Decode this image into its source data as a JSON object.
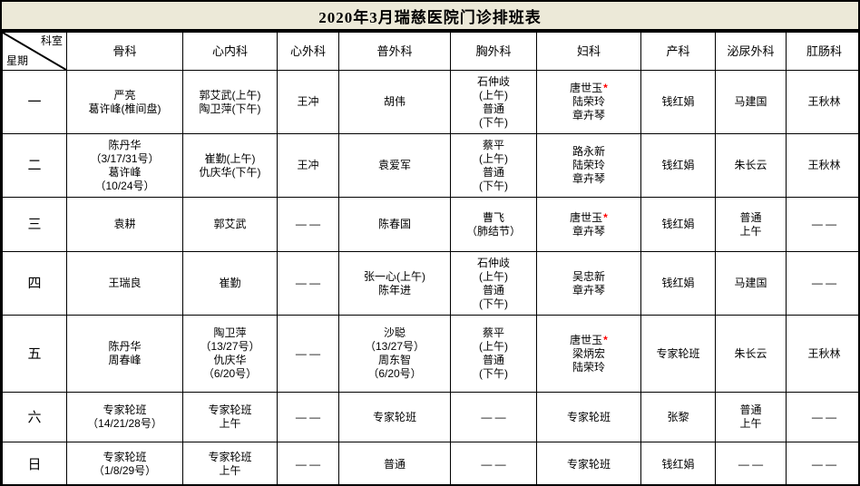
{
  "title": "2020年3月瑞慈医院门诊排班表",
  "corner": {
    "top": "科室",
    "bottom": "星期"
  },
  "star_symbol": "*",
  "colors": {
    "star": "#ff0000",
    "title_bg": "#ece9d8",
    "border": "#000000"
  },
  "columns": [
    "骨科",
    "心内科",
    "心外科",
    "普外科",
    "胸外科",
    "妇科",
    "产科",
    "泌尿外科",
    "肛肠科"
  ],
  "rows": [
    {
      "day": "一",
      "cells": [
        {
          "lines": [
            "严亮",
            "葛许峰(椎间盘)"
          ]
        },
        {
          "lines": [
            "郭艾武(上午)",
            "陶卫萍(下午)"
          ]
        },
        {
          "lines": [
            "王冲"
          ]
        },
        {
          "lines": [
            "胡伟"
          ]
        },
        {
          "lines": [
            "石仲歧",
            "(上午)",
            "普通",
            "(下午)"
          ]
        },
        {
          "lines": [
            "唐世玉",
            "陆荣玲",
            "章卉琴"
          ],
          "star": true
        },
        {
          "lines": [
            "钱红娟"
          ]
        },
        {
          "lines": [
            "马建国"
          ]
        },
        {
          "lines": [
            "王秋林"
          ]
        }
      ]
    },
    {
      "day": "二",
      "cells": [
        {
          "lines": [
            "陈丹华",
            "（3/17/31号）",
            "葛许峰",
            "（10/24号）"
          ]
        },
        {
          "lines": [
            "崔勤(上午)",
            "仇庆华(下午)"
          ]
        },
        {
          "lines": [
            "王冲"
          ]
        },
        {
          "lines": [
            "袁爱军"
          ]
        },
        {
          "lines": [
            "蔡平",
            "(上午)",
            "普通",
            "(下午)"
          ]
        },
        {
          "lines": [
            "路永新",
            "陆荣玲",
            "章卉琴"
          ]
        },
        {
          "lines": [
            "钱红娟"
          ]
        },
        {
          "lines": [
            "朱长云"
          ]
        },
        {
          "lines": [
            "王秋林"
          ]
        }
      ]
    },
    {
      "day": "三",
      "cells": [
        {
          "lines": [
            "袁耕"
          ]
        },
        {
          "lines": [
            "郭艾武"
          ]
        },
        {
          "lines": [
            "— —"
          ]
        },
        {
          "lines": [
            "陈春国"
          ]
        },
        {
          "lines": [
            "曹飞",
            "（肺结节）"
          ]
        },
        {
          "lines": [
            "唐世玉",
            "章卉琴"
          ],
          "star": true
        },
        {
          "lines": [
            "钱红娟"
          ]
        },
        {
          "lines": [
            "普通",
            "上午"
          ]
        },
        {
          "lines": [
            "— —"
          ]
        }
      ]
    },
    {
      "day": "四",
      "cells": [
        {
          "lines": [
            "王瑞良"
          ]
        },
        {
          "lines": [
            "崔勤"
          ]
        },
        {
          "lines": [
            "— —"
          ]
        },
        {
          "lines": [
            "张一心(上午)",
            "陈年进"
          ]
        },
        {
          "lines": [
            "石仲歧",
            "(上午)",
            "普通",
            "(下午)"
          ]
        },
        {
          "lines": [
            "吴忠新",
            "章卉琴"
          ]
        },
        {
          "lines": [
            "钱红娟"
          ]
        },
        {
          "lines": [
            "马建国"
          ]
        },
        {
          "lines": [
            "— —"
          ]
        }
      ]
    },
    {
      "day": "五",
      "cells": [
        {
          "lines": [
            "陈丹华",
            "周春峰"
          ]
        },
        {
          "lines": [
            "陶卫萍",
            "（13/27号）",
            "仇庆华",
            "（6/20号）"
          ]
        },
        {
          "lines": [
            "— —"
          ]
        },
        {
          "lines": [
            "沙聪",
            "（13/27号）",
            "周东智",
            "（6/20号）"
          ]
        },
        {
          "lines": [
            "蔡平",
            "(上午)",
            "普通",
            "(下午)"
          ]
        },
        {
          "lines": [
            "唐世玉",
            "梁炳宏",
            "陆荣玲"
          ],
          "star": true
        },
        {
          "lines": [
            "专家轮班"
          ]
        },
        {
          "lines": [
            "朱长云"
          ]
        },
        {
          "lines": [
            "王秋林"
          ]
        }
      ]
    },
    {
      "day": "六",
      "cells": [
        {
          "lines": [
            "专家轮班",
            "（14/21/28号）"
          ]
        },
        {
          "lines": [
            "专家轮班",
            "上午"
          ]
        },
        {
          "lines": [
            "— —"
          ]
        },
        {
          "lines": [
            "专家轮班"
          ]
        },
        {
          "lines": [
            "— —"
          ]
        },
        {
          "lines": [
            "专家轮班"
          ]
        },
        {
          "lines": [
            "张黎"
          ]
        },
        {
          "lines": [
            "普通",
            "上午"
          ]
        },
        {
          "lines": [
            "— —"
          ]
        }
      ]
    },
    {
      "day": "日",
      "cells": [
        {
          "lines": [
            "专家轮班",
            "（1/8/29号）"
          ]
        },
        {
          "lines": [
            "专家轮班",
            "上午"
          ]
        },
        {
          "lines": [
            "— —"
          ]
        },
        {
          "lines": [
            "普通"
          ]
        },
        {
          "lines": [
            "— —"
          ]
        },
        {
          "lines": [
            "专家轮班"
          ]
        },
        {
          "lines": [
            "钱红娟"
          ]
        },
        {
          "lines": [
            "— —"
          ]
        },
        {
          "lines": [
            "— —"
          ]
        }
      ]
    }
  ]
}
